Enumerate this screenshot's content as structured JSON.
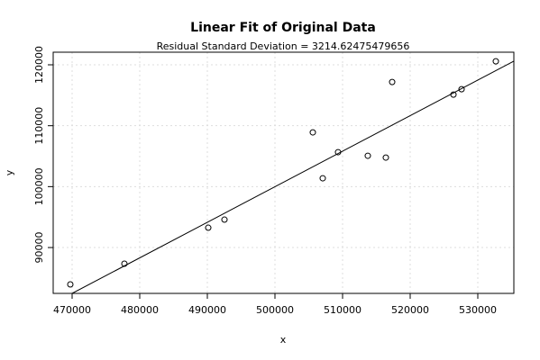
{
  "chart_data": {
    "type": "scatter",
    "title": "Linear Fit of Original Data",
    "subtitle": "Residual Standard Deviation =  3214.62475479656",
    "x_label": "x",
    "y_label": "y",
    "series": [
      {
        "name": "Original Data",
        "color": "#000000",
        "x": [
          469733,
          477733,
          490133,
          492533,
          505600,
          507067,
          509333,
          513733,
          516400,
          517333,
          526400,
          527600,
          532667
        ],
        "values": [
          83944,
          87341,
          93250,
          94580,
          108907,
          101374,
          105657,
          105066,
          104770,
          117178,
          115110,
          115997,
          120576
        ]
      }
    ],
    "fit_line": {
      "color": "#000000",
      "x": [
        470000,
        535333
      ],
      "values": [
        82470,
        120600
      ]
    },
    "xlim": [
      467200,
      535333
    ],
    "ylim": [
      82470,
      122070
    ],
    "xticks": [
      470000,
      480000,
      490000,
      500000,
      510000,
      520000,
      530000
    ],
    "yticks": [
      90000,
      100000,
      110000,
      120000
    ],
    "grid": true
  }
}
